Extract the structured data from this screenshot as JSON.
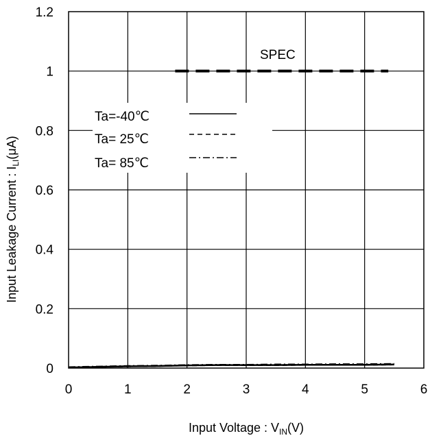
{
  "chart_data": {
    "type": "line",
    "xlabel": "Input Voltage : V",
    "xlabel_sub": "IN",
    "xlabel_unit": "(V)",
    "ylabel": "Input Leakage Current : I",
    "ylabel_sub": "LI",
    "ylabel_unit": "(μA)",
    "xlim": [
      0,
      6
    ],
    "ylim": [
      0,
      1.2
    ],
    "x_ticks": [
      "0",
      "1",
      "2",
      "3",
      "4",
      "5",
      "6"
    ],
    "y_ticks": [
      "0",
      "0.2",
      "0.4",
      "0.6",
      "0.8",
      "1",
      "1.2"
    ],
    "grid": true,
    "legend_position": "upper-left",
    "series": [
      {
        "name": "Ta=-40℃",
        "style": "solid",
        "x": [
          0,
          0.5,
          1,
          1.5,
          2,
          2.5,
          3,
          3.5,
          4,
          4.5,
          5,
          5.5
        ],
        "y": [
          0.002,
          0.004,
          0.006,
          0.007,
          0.009,
          0.01,
          0.01,
          0.01,
          0.011,
          0.011,
          0.011,
          0.012
        ]
      },
      {
        "name": "Ta= 25℃",
        "style": "dashed",
        "x": [
          0,
          0.5,
          1,
          1.5,
          2,
          2.5,
          3,
          3.5,
          4,
          4.5,
          5,
          5.5
        ],
        "y": [
          0.002,
          0.004,
          0.006,
          0.007,
          0.009,
          0.01,
          0.01,
          0.01,
          0.011,
          0.011,
          0.011,
          0.012
        ]
      },
      {
        "name": "Ta= 85℃",
        "style": "dash-dot",
        "x": [
          0,
          0.5,
          1,
          1.5,
          2,
          2.5,
          3,
          3.5,
          4,
          4.5,
          5,
          5.5
        ],
        "y": [
          0.003,
          0.005,
          0.007,
          0.008,
          0.01,
          0.011,
          0.011,
          0.012,
          0.012,
          0.013,
          0.013,
          0.014
        ]
      }
    ],
    "spec": {
      "label": "SPEC",
      "y": 1.0,
      "x_start": 1.8,
      "x_end": 5.4
    }
  }
}
